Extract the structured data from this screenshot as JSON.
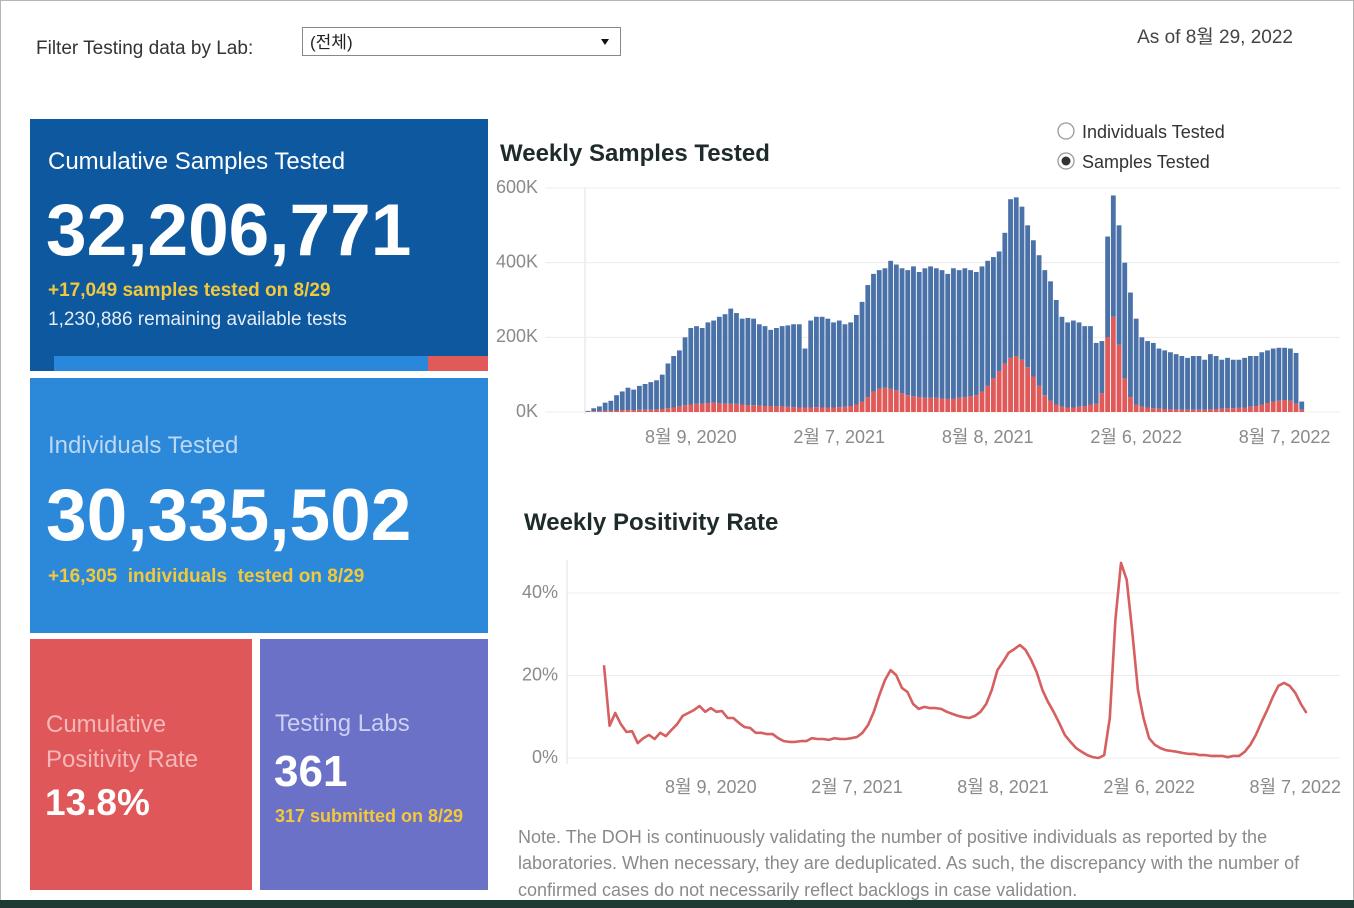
{
  "filter": {
    "label": "Filter Testing data by Lab:",
    "selected": "(전체)"
  },
  "as_of": "As of 8월 29, 2022",
  "cumulative_samples": {
    "title": "Cumulative Samples Tested",
    "value": "32,206,771",
    "today": "+17,049 samples tested on 8/29",
    "remaining": "1,230,886 remaining available tests"
  },
  "individuals": {
    "title": "Individuals Tested",
    "value": "30,335,502",
    "today": "+16,305  individuals  tested on 8/29"
  },
  "positivity": {
    "title_lines": [
      "Cumulative",
      "Positivity Rate"
    ],
    "value": "13.8%"
  },
  "labs": {
    "title": "Testing Labs",
    "value": "361",
    "today": "317 submitted on 8/29"
  },
  "toggle": {
    "options": [
      "Individuals Tested",
      "Samples Tested"
    ],
    "selected": 1
  },
  "note_lines": [
    "Note. The DOH is continuously validating the number of positive individuals as reported by the",
    "laboratories. When necessary, they are deduplicated. As such, the discrepancy with the number of",
    "confirmed cases do not necessarily reflect backlogs in case validation."
  ],
  "chart_data": [
    {
      "type": "bar",
      "stacked": true,
      "title": "Weekly Samples Tested",
      "categories": [
        null,
        null,
        null,
        null,
        null,
        null,
        null,
        null,
        null,
        null,
        null,
        null,
        null,
        null,
        null,
        null,
        null,
        null,
        "8월 9, 2020",
        null,
        null,
        null,
        null,
        null,
        null,
        null,
        null,
        null,
        null,
        null,
        null,
        null,
        null,
        null,
        null,
        null,
        null,
        null,
        null,
        null,
        null,
        null,
        null,
        null,
        "2월 7, 2021",
        null,
        null,
        null,
        null,
        null,
        null,
        null,
        null,
        null,
        null,
        null,
        null,
        null,
        null,
        null,
        null,
        null,
        null,
        null,
        null,
        null,
        null,
        null,
        null,
        null,
        "8월 8, 2021",
        null,
        null,
        null,
        null,
        null,
        null,
        null,
        null,
        null,
        null,
        null,
        null,
        null,
        null,
        null,
        null,
        null,
        null,
        null,
        null,
        null,
        null,
        null,
        null,
        null,
        "2월 6, 2022",
        null,
        null,
        null,
        null,
        null,
        null,
        null,
        null,
        null,
        null,
        null,
        null,
        null,
        null,
        null,
        null,
        null,
        null,
        null,
        null,
        null,
        null,
        null,
        null,
        null,
        "8월 7, 2022",
        null,
        null,
        null
      ],
      "series": [
        {
          "color": "#e05a5a",
          "values": [
            1000,
            2000,
            2000,
            3000,
            3000,
            4000,
            5000,
            5000,
            5000,
            6000,
            6000,
            6000,
            7000,
            8000,
            10000,
            12000,
            15000,
            18000,
            20000,
            22000,
            22000,
            24000,
            25000,
            24000,
            22000,
            22000,
            22000,
            20000,
            18000,
            18000,
            17000,
            16000,
            16000,
            15000,
            15000,
            14000,
            13000,
            12000,
            12000,
            12000,
            13000,
            12000,
            12000,
            12000,
            13000,
            14000,
            16000,
            20000,
            28000,
            40000,
            55000,
            62000,
            65000,
            62000,
            58000,
            50000,
            45000,
            42000,
            40000,
            38000,
            38000,
            38000,
            36000,
            35000,
            35000,
            38000,
            40000,
            42000,
            45000,
            55000,
            70000,
            90000,
            110000,
            130000,
            145000,
            150000,
            140000,
            120000,
            95000,
            70000,
            45000,
            30000,
            20000,
            14000,
            12000,
            12000,
            14000,
            16000,
            20000,
            22000,
            50000,
            200000,
            255000,
            180000,
            90000,
            40000,
            20000,
            14000,
            12000,
            10000,
            9000,
            8000,
            7000,
            7000,
            6000,
            6000,
            6000,
            6000,
            6000,
            7000,
            8000,
            9000,
            10000,
            10000,
            11000,
            12000,
            14000,
            16000,
            20000,
            24000,
            28000,
            30000,
            32000,
            30000,
            22000,
            6000
          ]
        },
        {
          "color": "#4a71a8",
          "values": [
            2000,
            8000,
            13000,
            22000,
            27000,
            41000,
            50000,
            60000,
            55000,
            64000,
            69000,
            74000,
            78000,
            92000,
            120000,
            138000,
            150000,
            182000,
            205000,
            208000,
            203000,
            216000,
            220000,
            231000,
            240000,
            255000,
            243000,
            230000,
            234000,
            232000,
            218000,
            214000,
            204000,
            210000,
            215000,
            218000,
            222000,
            223000,
            158000,
            233000,
            242000,
            243000,
            238000,
            228000,
            232000,
            221000,
            224000,
            240000,
            267000,
            300000,
            315000,
            318000,
            320000,
            343000,
            337000,
            335000,
            335000,
            348000,
            335000,
            347000,
            352000,
            347000,
            344000,
            335000,
            350000,
            342000,
            345000,
            338000,
            330000,
            335000,
            335000,
            325000,
            320000,
            350000,
            425000,
            425000,
            410000,
            380000,
            365000,
            350000,
            335000,
            320000,
            280000,
            241000,
            228000,
            233000,
            226000,
            214000,
            210000,
            163000,
            140000,
            270000,
            325000,
            320000,
            310000,
            280000,
            230000,
            186000,
            178000,
            175000,
            161000,
            157000,
            153000,
            148000,
            144000,
            139000,
            144000,
            144000,
            134000,
            148000,
            142000,
            131000,
            135000,
            130000,
            129000,
            133000,
            136000,
            134000,
            140000,
            141000,
            142000,
            142000,
            140000,
            140000,
            136000,
            22000
          ]
        }
      ],
      "ylim": [
        0,
        600000
      ],
      "yticks": [
        {
          "value": 0,
          "label": "0K"
        },
        {
          "value": 200000,
          "label": "200K"
        },
        {
          "value": 400000,
          "label": "400K"
        },
        {
          "value": 600000,
          "label": "600K"
        }
      ],
      "grid": true
    },
    {
      "type": "line",
      "title": "Weekly Positivity Rate",
      "categories": [
        null,
        null,
        null,
        null,
        null,
        null,
        null,
        null,
        null,
        null,
        null,
        null,
        null,
        null,
        null,
        null,
        null,
        null,
        null,
        "8월 9, 2020",
        null,
        null,
        null,
        null,
        null,
        null,
        null,
        null,
        null,
        null,
        null,
        null,
        null,
        null,
        null,
        null,
        null,
        null,
        null,
        null,
        null,
        null,
        null,
        null,
        null,
        "2월 7, 2021",
        null,
        null,
        null,
        null,
        null,
        null,
        null,
        null,
        null,
        null,
        null,
        null,
        null,
        null,
        null,
        null,
        null,
        null,
        null,
        null,
        null,
        null,
        null,
        null,
        null,
        "8월 8, 2021",
        null,
        null,
        null,
        null,
        null,
        null,
        null,
        null,
        null,
        null,
        null,
        null,
        null,
        null,
        null,
        null,
        null,
        null,
        null,
        null,
        null,
        null,
        null,
        null,
        null,
        "2월 6, 2022",
        null,
        null,
        null,
        null,
        null,
        null,
        null,
        null,
        null,
        null,
        null,
        null,
        null,
        null,
        null,
        null,
        null,
        null,
        null,
        null,
        null,
        null,
        null,
        null,
        null,
        "8월 7, 2022",
        null,
        null
      ],
      "values": [
        22.5,
        7.8,
        10.9,
        8.2,
        6.3,
        6.5,
        3.6,
        4.8,
        5.6,
        4.6,
        6.1,
        5.3,
        6.8,
        8.2,
        10.2,
        10.9,
        11.6,
        12.6,
        11.2,
        12.1,
        11.2,
        11.4,
        9.7,
        9.7,
        8.5,
        7.5,
        7.3,
        6.1,
        6.1,
        5.8,
        5.8,
        4.8,
        4.1,
        3.9,
        3.9,
        4.1,
        4.1,
        4.8,
        4.6,
        4.6,
        4.4,
        4.8,
        4.6,
        4.6,
        4.8,
        5.1,
        6.1,
        8,
        11.2,
        15.3,
        18.9,
        21.3,
        20.1,
        17,
        16,
        13.1,
        11.9,
        12.4,
        12.1,
        12.1,
        11.9,
        11.2,
        10.7,
        10.2,
        9.9,
        9.7,
        10.2,
        11.2,
        13.1,
        16.5,
        21.3,
        23.3,
        25.5,
        26.4,
        27.4,
        26.2,
        23.8,
        20.8,
        16.5,
        13.6,
        11.2,
        8.5,
        5.6,
        3.9,
        2.4,
        1.5,
        0.7,
        0.2,
        0,
        0.7,
        9.7,
        33.5,
        47.3,
        43.2,
        30.5,
        16.5,
        9.7,
        4.8,
        3.2,
        2.4,
        1.9,
        1.7,
        1.5,
        1.2,
        1,
        1,
        0.7,
        0.7,
        0.5,
        0.5,
        0.5,
        0.2,
        0.5,
        0.5,
        1.5,
        3.2,
        5.6,
        8.7,
        11.6,
        14.8,
        17.5,
        18.2,
        17.5,
        15.8,
        13.1,
        10.9
      ],
      "color": "#d65f5f",
      "ylim": [
        0,
        48
      ],
      "yticks": [
        {
          "value": 0,
          "label": "0%"
        },
        {
          "value": 20,
          "label": "20%"
        },
        {
          "value": 40,
          "label": "40%"
        }
      ],
      "grid": true
    }
  ]
}
